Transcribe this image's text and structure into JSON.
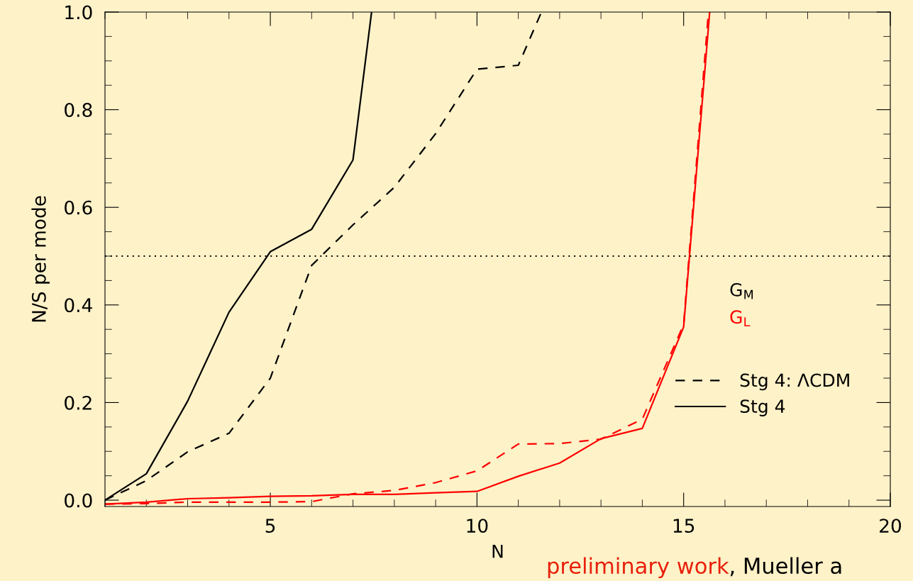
{
  "chart_data": {
    "type": "line",
    "xlabel": "N",
    "ylabel": "N/S per mode",
    "xlim": [
      1,
      20
    ],
    "xticks": [
      5,
      10,
      15,
      20
    ],
    "ylim": [
      -0.013,
      1.0
    ],
    "yticks": [
      {
        "value": 0,
        "label": "0.0"
      },
      0.2,
      0.4,
      0.6,
      0.8,
      {
        "value": 1,
        "label": "1.0"
      }
    ],
    "series": [
      {
        "name": "Stg 4: ΛCDM",
        "color": "#000000",
        "line_style": "dashed",
        "x": [
          1,
          2,
          3,
          4,
          5,
          6,
          7,
          8,
          9,
          10,
          11,
          11.56
        ],
        "values": [
          0.0,
          0.04,
          0.099,
          0.137,
          0.25,
          0.481,
          0.564,
          0.641,
          0.751,
          0.883,
          0.891,
          1.0
        ]
      },
      {
        "name": "Stg 4",
        "color": "#000000",
        "line_style": "solid",
        "x": [
          1,
          2,
          3,
          4,
          5,
          6,
          7,
          7.45
        ],
        "values": [
          0.0,
          0.054,
          0.203,
          0.385,
          0.509,
          0.555,
          0.697,
          1.0
        ]
      },
      {
        "color": "#ff0000",
        "line_style": "dashed",
        "x": [
          1,
          2,
          3,
          4,
          5,
          6,
          7,
          8,
          9,
          10,
          11,
          12,
          13,
          14,
          15,
          15.6
        ],
        "values": [
          -0.008,
          -0.007,
          -0.004,
          -0.004,
          -0.004,
          -0.003,
          0.013,
          0.02,
          0.036,
          0.06,
          0.115,
          0.116,
          0.125,
          0.166,
          0.36,
          1.0
        ]
      },
      {
        "color": "#ff0000",
        "line_style": "solid",
        "x": [
          1,
          2,
          3,
          4,
          5,
          6,
          7,
          8,
          9,
          10,
          11,
          12,
          13,
          14,
          15,
          15.63
        ],
        "values": [
          -0.008,
          -0.004,
          0.003,
          0.005,
          0.008,
          0.009,
          0.012,
          0.012,
          0.015,
          0.018,
          0.049,
          0.076,
          0.126,
          0.147,
          0.355,
          1.0
        ]
      }
    ],
    "ref_lines": [
      {
        "axis": "y",
        "value": 0.5,
        "color": "#000000",
        "line_style": "dotted"
      }
    ],
    "annotations": [
      "G$_{M}$",
      "G$_{L}$",
      "preliminary work",
      ", Mueller a"
    ],
    "legend": "bottom right",
    "grid": false
  }
}
